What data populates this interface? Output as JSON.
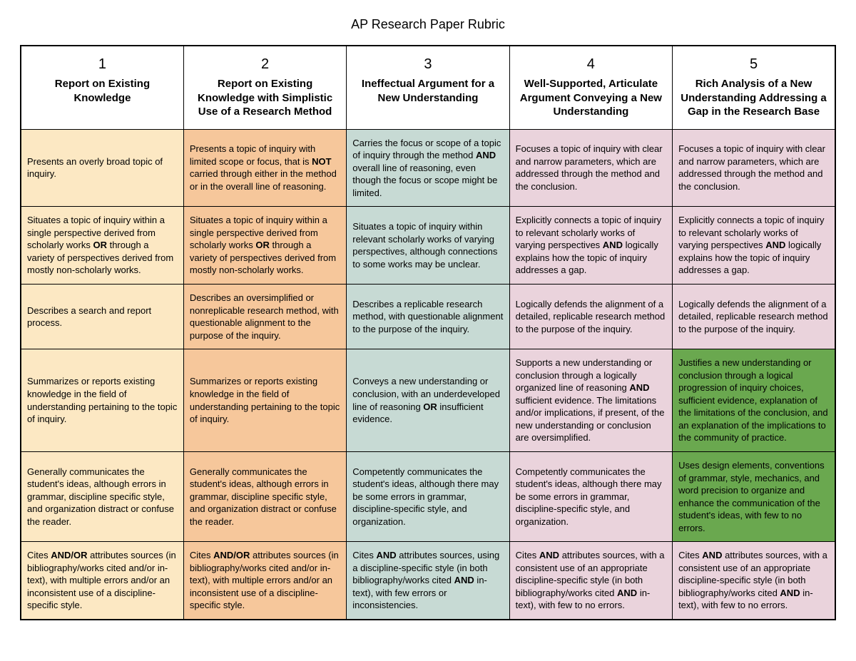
{
  "title": "AP Research Paper Rubric",
  "colors": {
    "col1": "#fce8c3",
    "col2": "#f6c79b",
    "col3": "#c7dad4",
    "col4": "#ead3dc",
    "col5": "#ead3dc",
    "green": "#6aa84f",
    "header_bg": "#ffffff",
    "border": "#000000",
    "text": "#000000"
  },
  "columns": [
    {
      "num": "1",
      "title": "Report on Existing Knowledge"
    },
    {
      "num": "2",
      "title": "Report on Existing Knowledge with Simplistic Use of a Research Method"
    },
    {
      "num": "3",
      "title": "Ineffectual Argument for a New Understanding"
    },
    {
      "num": "4",
      "title": "Well-Supported, Articulate Argument Conveying a New Understanding"
    },
    {
      "num": "5",
      "title": "Rich Analysis of a New Understanding Addressing a Gap in the Research Base"
    }
  ],
  "rows": [
    {
      "cells": [
        {
          "color": "col1",
          "html": "Presents an overly broad topic of inquiry."
        },
        {
          "color": "col2",
          "html": "Presents a topic of inquiry with limited scope or focus, that is <span class=\"bold\">NOT</span> carried through either in the method or in the overall line of reasoning."
        },
        {
          "color": "col3",
          "html": "Carries the focus or scope of a topic of inquiry through the method <span class=\"bold\">AND</span> overall line of reasoning, even though the focus or scope might be limited."
        },
        {
          "color": "col4",
          "html": "Focuses a topic of inquiry with clear and narrow parameters, which are addressed through the method and the conclusion."
        },
        {
          "color": "col5",
          "html": "Focuses a topic of inquiry with clear and narrow parameters, which are addressed through the method and the conclusion."
        }
      ]
    },
    {
      "cells": [
        {
          "color": "col1",
          "html": "Situates a topic of inquiry within a single perspective derived from scholarly works <span class=\"bold\">OR</span> through a variety of perspectives derived from mostly non-scholarly works."
        },
        {
          "color": "col2",
          "html": "Situates a topic of inquiry within a single perspective derived from scholarly works <span class=\"bold\">OR</span> through a variety of perspectives derived from mostly non-scholarly works."
        },
        {
          "color": "col3",
          "html": "Situates a topic of inquiry within relevant scholarly works of varying perspectives, although connections to some works may be unclear."
        },
        {
          "color": "col4",
          "html": "Explicitly connects a topic of inquiry to relevant scholarly works of varying perspectives <span class=\"bold\">AND</span> logically explains how the topic of inquiry addresses a gap."
        },
        {
          "color": "col5",
          "html": "Explicitly connects a topic of inquiry to relevant scholarly works of varying perspectives <span class=\"bold\">AND</span> logically explains how the topic of inquiry addresses a gap."
        }
      ]
    },
    {
      "cells": [
        {
          "color": "col1",
          "html": "Describes a search and report process."
        },
        {
          "color": "col2",
          "html": "Describes an oversimplified or nonreplicable research method, with questionable alignment to the purpose of the inquiry."
        },
        {
          "color": "col3",
          "html": "Describes a replicable research method, with questionable alignment to the purpose of the inquiry."
        },
        {
          "color": "col4",
          "html": "Logically defends the alignment of a detailed, replicable research method to the purpose of the inquiry."
        },
        {
          "color": "col5",
          "html": "Logically defends the alignment of a detailed, replicable research method to the purpose of the inquiry."
        }
      ]
    },
    {
      "cells": [
        {
          "color": "col1",
          "html": "Summarizes or reports existing knowledge in the field of understanding pertaining to the topic of inquiry."
        },
        {
          "color": "col2",
          "html": "Summarizes or reports existing knowledge in the field of understanding pertaining to the topic of inquiry."
        },
        {
          "color": "col3",
          "html": "Conveys a new understanding or conclusion, with an underdeveloped line of reasoning <span class=\"bold\">OR</span> insufficient evidence."
        },
        {
          "color": "col4",
          "html": "Supports a new understanding or conclusion through a logically organized line of reasoning <span class=\"bold\">AND</span> sufficient evidence. The limitations and/or implications, if present, of the new understanding or conclusion are oversimplified."
        },
        {
          "color": "green",
          "html": "Justifies a new understanding or conclusion through a logical progression of inquiry choices, sufficient evidence, explanation of the limitations of the conclusion, and an explanation of the implications to the community of practice."
        }
      ]
    },
    {
      "cells": [
        {
          "color": "col1",
          "html": "Generally communicates the student's ideas, although errors in grammar, discipline specific style, and organization distract or confuse the reader."
        },
        {
          "color": "col2",
          "html": "Generally communicates the student's ideas, although errors in grammar, discipline specific style, and organization distract or confuse the reader."
        },
        {
          "color": "col3",
          "html": "Competently communicates the student's ideas, although there may be some errors in grammar, discipline-specific style, and organization."
        },
        {
          "color": "col4",
          "html": "Competently communicates the student's ideas, although there may be some errors in grammar, discipline-specific style, and organization."
        },
        {
          "color": "green",
          "html": "Uses design elements, conventions of grammar, style, mechanics, and word precision to organize and enhance the communication of the student's ideas, with few to no errors."
        }
      ]
    },
    {
      "cells": [
        {
          "color": "col1",
          "html": "Cites <span class=\"bold\">AND/OR</span> attributes sources (in bibliography/works cited and/or in-text), with multiple errors and/or an inconsistent use of a discipline-specific style."
        },
        {
          "color": "col2",
          "html": "Cites <span class=\"bold\">AND/OR</span> attributes sources (in bibliography/works cited and/or in-text), with multiple errors and/or an inconsistent use of a discipline-specific style."
        },
        {
          "color": "col3",
          "html": "Cites <span class=\"bold\">AND</span> attributes sources, using a discipline-specific style (in both bibliography/works cited <span class=\"bold\">AND</span> in-text), with few errors or inconsistencies."
        },
        {
          "color": "col4",
          "html": "Cites <span class=\"bold\">AND</span> attributes sources, with a consistent use of an appropriate discipline-specific style (in both bibliography/works cited <span class=\"bold\">AND</span> in-text), with few to no errors."
        },
        {
          "color": "col5",
          "html": "Cites <span class=\"bold\">AND</span> attributes sources, with a consistent use of an appropriate discipline-specific style (in both bibliography/works cited <span class=\"bold\">AND</span> in-text), with few to no errors."
        }
      ]
    }
  ]
}
